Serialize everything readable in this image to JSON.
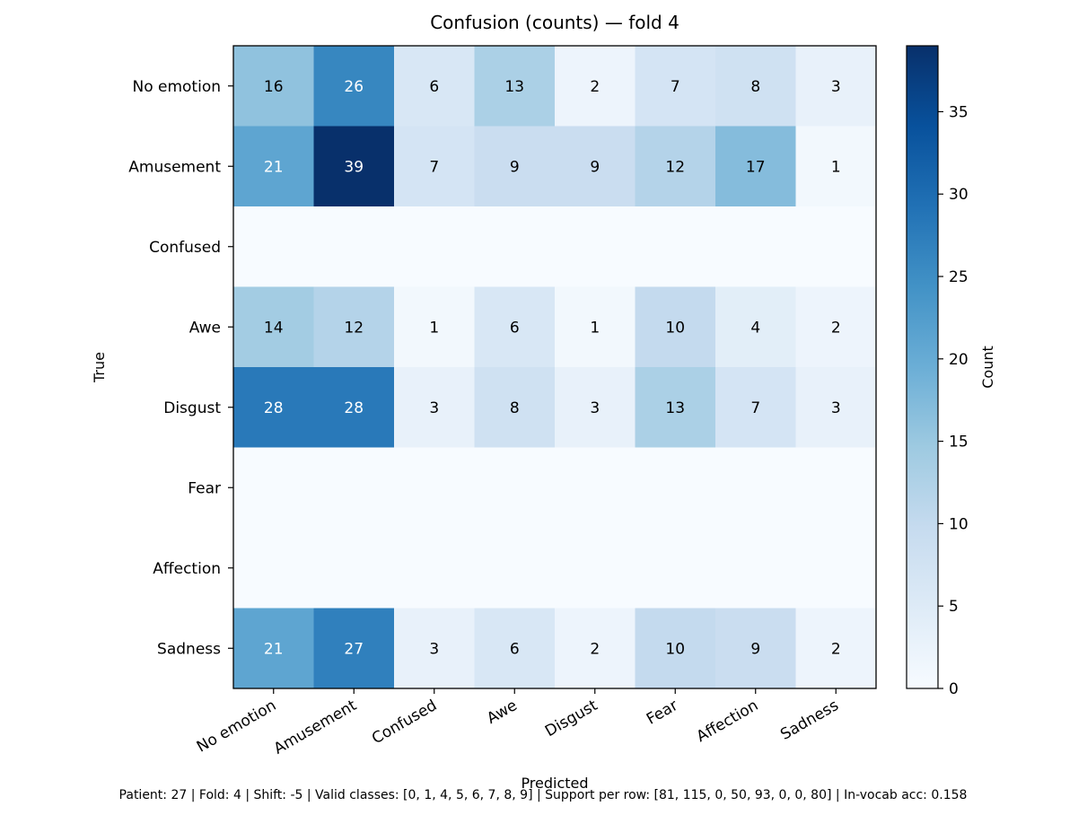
{
  "chart_data": {
    "type": "heatmap",
    "title": "Confusion (counts) — fold 4",
    "xlabel": "Predicted",
    "ylabel": "True",
    "x_categories": [
      "No emotion",
      "Amusement",
      "Confused",
      "Awe",
      "Disgust",
      "Fear",
      "Affection",
      "Sadness"
    ],
    "y_categories": [
      "No emotion",
      "Amusement",
      "Confused",
      "Awe",
      "Disgust",
      "Fear",
      "Affection",
      "Sadness"
    ],
    "values": [
      [
        16,
        26,
        6,
        13,
        2,
        7,
        8,
        3
      ],
      [
        21,
        39,
        7,
        9,
        9,
        12,
        17,
        1
      ],
      [
        0,
        0,
        0,
        0,
        0,
        0,
        0,
        0
      ],
      [
        14,
        12,
        1,
        6,
        1,
        10,
        4,
        2
      ],
      [
        28,
        28,
        3,
        8,
        3,
        13,
        7,
        3
      ],
      [
        0,
        0,
        0,
        0,
        0,
        0,
        0,
        0
      ],
      [
        0,
        0,
        0,
        0,
        0,
        0,
        0,
        0
      ],
      [
        21,
        27,
        3,
        6,
        2,
        10,
        9,
        2
      ]
    ],
    "show_cell_labels": [
      true,
      true,
      false,
      true,
      true,
      false,
      false,
      true
    ],
    "colormap": "Blues",
    "value_range": [
      0,
      39
    ],
    "colorbar": {
      "label": "Count",
      "ticks": [
        0,
        5,
        10,
        15,
        20,
        25,
        30,
        35
      ]
    },
    "grid": false,
    "colors": {
      "light_text": "#ffffff",
      "dark_text": "#000000"
    }
  },
  "footer": {
    "text": "Patient: 27 | Fold: 4 | Shift: -5 | Valid classes: [0, 1, 4, 5, 6, 7, 8, 9] | Support per row: [81, 115, 0, 50, 93, 0, 0, 80] | In-vocab acc: 0.158"
  }
}
